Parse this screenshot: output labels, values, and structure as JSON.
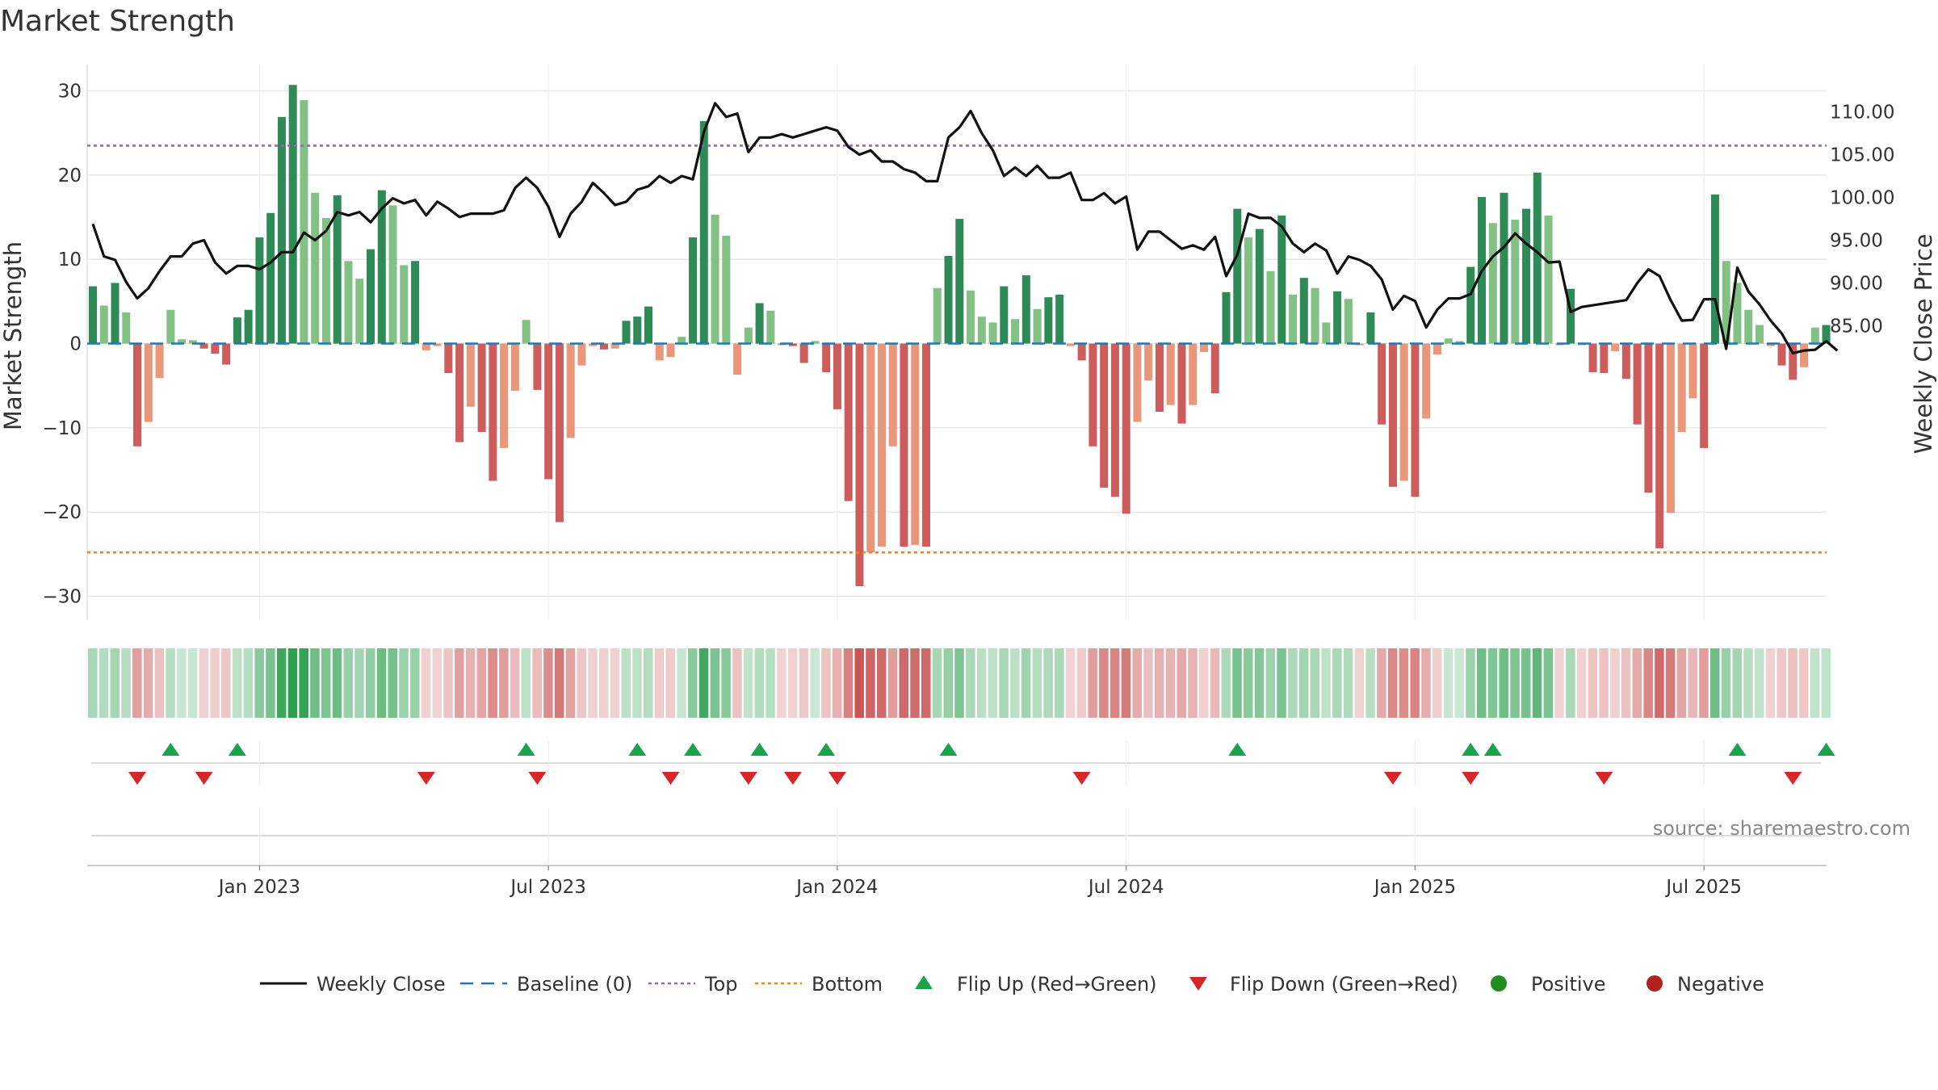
{
  "chart_data": {
    "type": "bar",
    "title": "Market Strength",
    "ylabel_left": "Market Strength",
    "ylabel_right": "Weekly Close Price",
    "ylim_left": [
      -33,
      33
    ],
    "ylim_right": [
      80.7,
      112.6
    ],
    "yticks_left": [
      {
        "value": 30,
        "label": "30"
      },
      {
        "value": 20,
        "label": "20"
      },
      {
        "value": 10,
        "label": "10"
      },
      {
        "value": 0,
        "label": "0"
      },
      {
        "value": -10,
        "label": "−10"
      },
      {
        "value": -20,
        "label": "−20"
      },
      {
        "value": -30,
        "label": "−30"
      }
    ],
    "yticks_right": [
      {
        "value": 110,
        "label": "110.00"
      },
      {
        "value": 105,
        "label": "105.00"
      },
      {
        "value": 100,
        "label": "100.00"
      },
      {
        "value": 95,
        "label": "95.00"
      },
      {
        "value": 90,
        "label": "90.00"
      },
      {
        "value": 85,
        "label": "85.00"
      }
    ],
    "xticks": [
      {
        "week": 15,
        "label": "Jan 2023"
      },
      {
        "week": 41,
        "label": "Jul 2023"
      },
      {
        "week": 67,
        "label": "Jan 2024"
      },
      {
        "week": 93,
        "label": "Jul 2024"
      },
      {
        "week": 119,
        "label": "Jan 2025"
      },
      {
        "week": 145,
        "label": "Jul 2025"
      }
    ],
    "week_count": 158,
    "top_line": 23.5,
    "bottom_line": -24.8,
    "strength": [
      6.8,
      4.5,
      7.2,
      3.7,
      -12.2,
      -9.3,
      -4.1,
      4.0,
      0.5,
      0.4,
      -0.6,
      -1.2,
      -2.5,
      3.1,
      4.0,
      12.6,
      15.5,
      26.9,
      30.7,
      28.9,
      17.9,
      14.9,
      17.6,
      9.8,
      7.7,
      11.2,
      18.2,
      16.4,
      9.3,
      9.8,
      -0.8,
      -0.3,
      -3.5,
      -11.7,
      -7.5,
      -10.5,
      -16.3,
      -12.4,
      -5.6,
      2.8,
      -5.5,
      -16.1,
      -21.2,
      -11.2,
      -2.6,
      -0.3,
      -0.7,
      -0.6,
      2.7,
      3.2,
      4.4,
      -2.0,
      -1.6,
      0.8,
      12.6,
      26.4,
      15.3,
      12.8,
      -3.7,
      1.9,
      4.8,
      3.9,
      -0.2,
      -0.3,
      -2.3,
      0.3,
      -3.4,
      -7.8,
      -18.7,
      -28.8,
      -24.8,
      -24.1,
      -12.2,
      -24.1,
      -23.9,
      -24.1,
      6.6,
      10.4,
      14.8,
      6.3,
      3.2,
      2.5,
      6.8,
      2.9,
      8.1,
      4.1,
      5.5,
      5.8,
      -0.3,
      -2.0,
      -12.2,
      -17.1,
      -18.2,
      -20.2,
      -9.3,
      -4.4,
      -8.1,
      -7.3,
      -9.5,
      -7.3,
      -1.0,
      -5.9,
      6.1,
      16.0,
      12.6,
      13.6,
      8.6,
      15.2,
      5.8,
      7.8,
      6.6,
      2.5,
      6.2,
      5.3,
      -0.2,
      3.7,
      -9.6,
      -17.0,
      -16.3,
      -18.2,
      -8.9,
      -1.3,
      0.6,
      0.3,
      9.1,
      17.4,
      14.3,
      17.9,
      14.7,
      16.0,
      20.3,
      15.2,
      -0.2,
      6.5,
      -0.2,
      -3.4,
      -3.5,
      -0.9,
      -4.2,
      -9.6,
      -17.7,
      -24.3,
      -20.1,
      -10.5,
      -6.5,
      -12.4,
      17.7,
      9.8,
      7.2,
      4.0,
      2.2,
      -0.3,
      -2.6,
      -4.3,
      -2.8,
      1.9,
      2.2
    ],
    "weekly_close": [
      96.9,
      93.1,
      92.7,
      90.1,
      88.2,
      89.4,
      91.4,
      93.1,
      93.1,
      94.6,
      95.0,
      92.4,
      91.1,
      92.0,
      92.0,
      91.6,
      92.4,
      93.6,
      93.6,
      95.9,
      95.0,
      96.1,
      98.3,
      97.9,
      98.3,
      97.1,
      98.7,
      99.9,
      99.3,
      99.7,
      97.9,
      99.5,
      98.7,
      97.7,
      98.1,
      98.1,
      98.1,
      98.5,
      101.1,
      102.3,
      101.1,
      98.9,
      95.4,
      98.1,
      99.5,
      101.7,
      100.5,
      99.1,
      99.5,
      100.9,
      101.3,
      102.5,
      101.7,
      102.5,
      102.1,
      107.7,
      111.0,
      109.4,
      109.8,
      105.3,
      107.0,
      107.0,
      107.4,
      107.0,
      107.4,
      107.8,
      108.2,
      107.8,
      105.9,
      105.0,
      105.5,
      104.2,
      104.2,
      103.3,
      102.9,
      101.9,
      101.9,
      107.0,
      108.2,
      110.1,
      107.5,
      105.5,
      102.5,
      103.5,
      102.5,
      103.7,
      102.3,
      102.3,
      102.9,
      99.7,
      99.7,
      100.5,
      99.3,
      100.1,
      93.9,
      96.0,
      96.0,
      95.0,
      94.0,
      94.4,
      93.9,
      95.4,
      90.8,
      93.3,
      98.1,
      97.6,
      97.6,
      96.6,
      94.6,
      93.6,
      94.6,
      93.8,
      91.1,
      93.1,
      92.7,
      92.0,
      90.4,
      86.9,
      88.5,
      87.9,
      84.8,
      86.9,
      88.2,
      88.2,
      88.7,
      91.4,
      93.1,
      94.2,
      95.8,
      94.6,
      93.6,
      92.4,
      92.5,
      86.6,
      87.2,
      87.4,
      87.6,
      87.8,
      88.0,
      90.0,
      91.6,
      90.8,
      88.0,
      85.6,
      85.7,
      88.1,
      88.1,
      82.3,
      91.8,
      89.0,
      87.5,
      85.6,
      84.1,
      81.8,
      82.1,
      82.2,
      83.2,
      82.1
    ],
    "heat_strip": [
      6.8,
      4.5,
      7.2,
      3.7,
      -12.2,
      -9.3,
      -4.1,
      4.0,
      0.5,
      0.4,
      -0.6,
      -1.2,
      -2.5,
      3.1,
      4.0,
      12.6,
      15.5,
      26.9,
      30.7,
      28.9,
      17.9,
      14.9,
      17.6,
      9.8,
      7.7,
      11.2,
      18.2,
      16.4,
      9.3,
      9.8,
      -0.8,
      -0.3,
      -3.5,
      -11.7,
      -7.5,
      -10.5,
      -16.3,
      -12.4,
      -5.6,
      2.8,
      -5.5,
      -16.1,
      -21.2,
      -11.2,
      -2.6,
      -0.3,
      -0.7,
      -0.6,
      2.7,
      3.2,
      4.4,
      -2.0,
      -1.6,
      0.8,
      12.6,
      26.4,
      15.3,
      12.8,
      -3.7,
      1.9,
      4.8,
      3.9,
      -0.2,
      -0.3,
      -2.3,
      0.3,
      -3.4,
      -7.8,
      -18.7,
      -28.8,
      -24.8,
      -24.1,
      -12.2,
      -24.1,
      -23.9,
      -24.1,
      6.6,
      10.4,
      14.8,
      6.3,
      3.2,
      2.5,
      6.8,
      2.9,
      8.1,
      4.1,
      5.5,
      5.8,
      -0.3,
      -2.0,
      -12.2,
      -17.1,
      -18.2,
      -20.2,
      -9.3,
      -4.4,
      -8.1,
      -7.3,
      -9.5,
      -7.3,
      -1.0,
      -5.9,
      6.1,
      16.0,
      12.6,
      13.6,
      8.6,
      15.2,
      5.8,
      7.8,
      6.6,
      2.5,
      6.2,
      5.3,
      -0.2,
      3.7,
      -9.6,
      -17.0,
      -16.3,
      -18.2,
      -8.9,
      -1.3,
      0.6,
      0.3,
      9.1,
      17.4,
      14.3,
      17.9,
      14.7,
      16.0,
      20.3,
      15.2,
      -0.2,
      6.5,
      -0.2,
      -3.4,
      -3.5,
      -0.9,
      -4.2,
      -9.6,
      -17.7,
      -24.3,
      -20.1,
      -10.5,
      -6.5,
      -12.4,
      17.7,
      9.8,
      7.2,
      4.0,
      2.2,
      -0.3,
      -2.6,
      -4.3,
      -2.8,
      1.9,
      2.2
    ],
    "flip_up_weeks": [
      7,
      13,
      39,
      49,
      54,
      60,
      66,
      77,
      103,
      124,
      126,
      148,
      156
    ],
    "flip_down_weeks": [
      4,
      10,
      30,
      40,
      52,
      59,
      63,
      67,
      89,
      117,
      124,
      136,
      153
    ],
    "legend": [
      {
        "key": "weekly_close",
        "label": "Weekly Close"
      },
      {
        "key": "baseline",
        "label": "Baseline (0)"
      },
      {
        "key": "top",
        "label": "Top"
      },
      {
        "key": "bottom",
        "label": "Bottom"
      },
      {
        "key": "flip_up",
        "label": "Flip Up (Red→Green)"
      },
      {
        "key": "flip_down",
        "label": "Flip Down (Green→Red)"
      },
      {
        "key": "positive",
        "label": "Positive"
      },
      {
        "key": "negative",
        "label": "Negative"
      }
    ],
    "source": "source: sharemaestro.com"
  },
  "colors": {
    "pos_dark": "#2e8b57",
    "pos_light": "#82c084",
    "neg_dark": "#cd5c5c",
    "neg_light": "#e9967a",
    "close_line": "#111111",
    "baseline": "#1f77b4",
    "top": "#9467bd",
    "bottom": "#ff7f0e",
    "flip_up": "#1aa34a",
    "flip_down": "#d62728",
    "positive_dot": "#228b22",
    "negative_dot": "#b22222",
    "grid": "#e6e6e6"
  }
}
